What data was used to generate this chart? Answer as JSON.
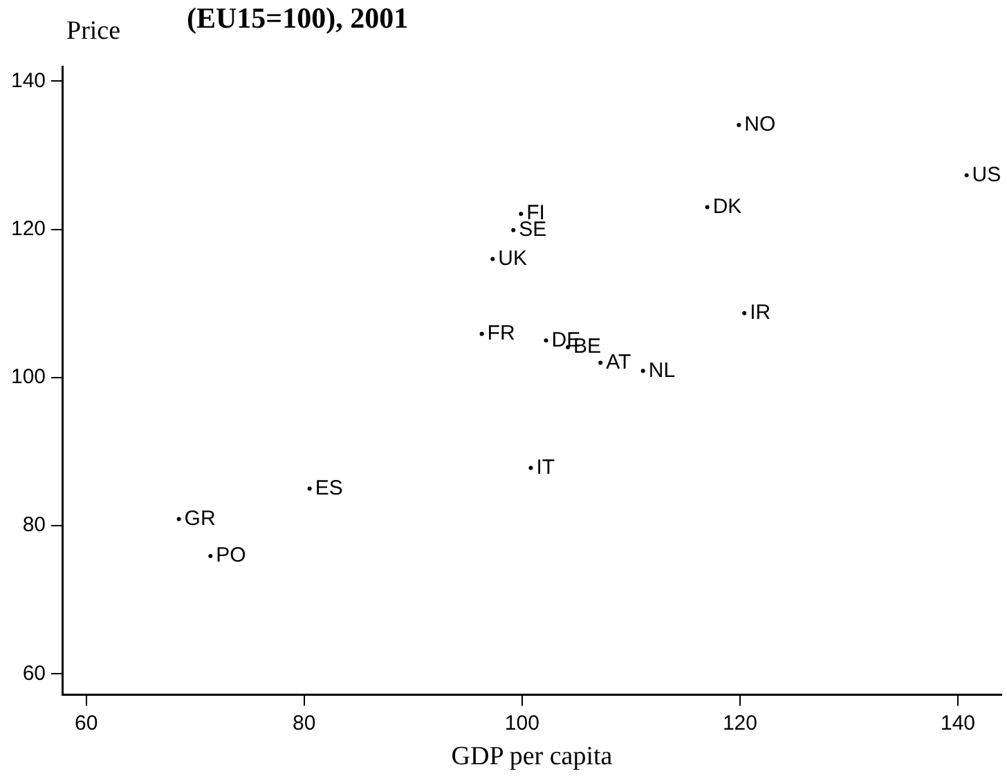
{
  "chart_data": {
    "type": "scatter",
    "title": "(EU15=100), 2001",
    "xlabel": "GDP per capita",
    "ylabel": "Price",
    "x": [
      119.9,
      140.8,
      99.9,
      99.2,
      97.3,
      117.0,
      120.4,
      96.3,
      102.2,
      104.2,
      107.2,
      111.1,
      100.8,
      80.5,
      68.5,
      71.4
    ],
    "values": [
      134.1,
      127.3,
      122.1,
      119.9,
      116.0,
      123.0,
      108.7,
      105.9,
      105.0,
      104.1,
      102.0,
      100.9,
      87.8,
      85.0,
      80.9,
      75.9
    ],
    "value_labels": [
      "NO",
      "US",
      "FI",
      "SE",
      "UK",
      "DK",
      "IR",
      "FR",
      "DE",
      "BE",
      "AT",
      "NL",
      "IT",
      "ES",
      "GR",
      "PO"
    ],
    "color": "#000000",
    "marker": "circle",
    "xlim": [
      57.8,
      144
    ],
    "ylim": [
      57.2,
      142
    ],
    "xticks": [
      60,
      80,
      100,
      120,
      140
    ],
    "yticks": [
      60,
      80,
      100,
      120,
      140
    ],
    "grid": false,
    "legend": false
  }
}
